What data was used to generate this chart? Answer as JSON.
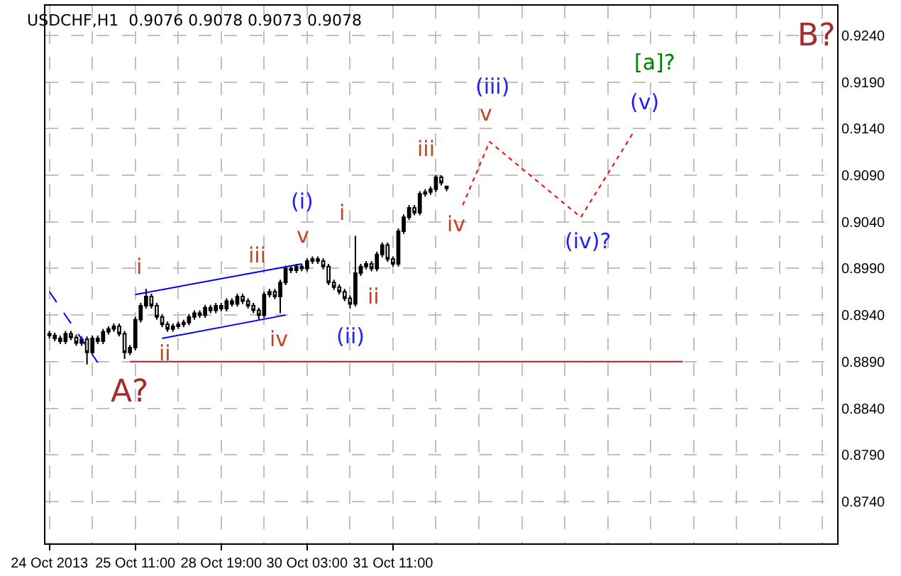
{
  "chart_data": {
    "type": "candlestick",
    "title": "USDCHF,H1  0.9076 0.9078 0.9073 0.9078",
    "categories": [
      "24 Oct 2013",
      null,
      null,
      null,
      null,
      null,
      null,
      null,
      null,
      null,
      null,
      null,
      null,
      null,
      null,
      null,
      "25 Oct 11:00",
      null,
      null,
      null,
      null,
      null,
      null,
      null,
      null,
      null,
      null,
      null,
      null,
      null,
      null,
      null,
      "28 Oct 19:00",
      null,
      null,
      null,
      null,
      null,
      null,
      null,
      null,
      null,
      null,
      null,
      null,
      null,
      null,
      null,
      "30 Oct 03:00",
      null,
      null,
      null,
      null,
      null,
      null,
      null,
      null,
      null,
      null,
      null,
      null,
      null,
      null,
      null,
      "31 Oct 11:00",
      null,
      null,
      null,
      null,
      null,
      null,
      null,
      null,
      null,
      null,
      null,
      null,
      null,
      null,
      null,
      null,
      null,
      null,
      null,
      null,
      null,
      null,
      null,
      null,
      null,
      null,
      null,
      null,
      null,
      null,
      null,
      null,
      null,
      null,
      null,
      null,
      null,
      null,
      null,
      null,
      null,
      null,
      null,
      null,
      null,
      null,
      null,
      null,
      null,
      null,
      null,
      null,
      null,
      null,
      null,
      null,
      null,
      null,
      null,
      null,
      null,
      null,
      null,
      null,
      null,
      null,
      null,
      null,
      null,
      null,
      null,
      null,
      null,
      null,
      null,
      null,
      null,
      null,
      null,
      null,
      null,
      null
    ],
    "color": "#000000",
    "ohlc": [
      [
        0.892,
        0.8923,
        0.8915,
        0.8918
      ],
      [
        0.8918,
        0.8921,
        0.8912,
        0.8915
      ],
      [
        0.8915,
        0.8918,
        0.8909,
        0.8912
      ],
      [
        0.8912,
        0.8923,
        0.8909,
        0.892
      ],
      [
        0.892,
        0.8923,
        0.8913,
        0.8916
      ],
      [
        0.8916,
        0.8919,
        0.8907,
        0.891
      ],
      [
        0.891,
        0.8917,
        0.8907,
        0.8914
      ],
      [
        0.8914,
        0.8917,
        0.8887,
        0.89
      ],
      [
        0.89,
        0.8918,
        0.8897,
        0.8915
      ],
      [
        0.8915,
        0.8918,
        0.8909,
        0.8912
      ],
      [
        0.8912,
        0.8925,
        0.8909,
        0.8922
      ],
      [
        0.8922,
        0.8928,
        0.8919,
        0.8925
      ],
      [
        0.8925,
        0.8931,
        0.8922,
        0.8928
      ],
      [
        0.8928,
        0.8931,
        0.8917,
        0.892
      ],
      [
        0.892,
        0.8923,
        0.8893,
        0.89
      ],
      [
        0.89,
        0.8908,
        0.8897,
        0.8905
      ],
      [
        0.8905,
        0.8938,
        0.8902,
        0.8935
      ],
      [
        0.8935,
        0.8953,
        0.8932,
        0.895
      ],
      [
        0.895,
        0.8968,
        0.8947,
        0.896
      ],
      [
        0.896,
        0.8963,
        0.8947,
        0.895
      ],
      [
        0.895,
        0.8953,
        0.8935,
        0.8938
      ],
      [
        0.8938,
        0.8941,
        0.8927,
        0.893
      ],
      [
        0.893,
        0.8933,
        0.8922,
        0.8925
      ],
      [
        0.8925,
        0.8931,
        0.8922,
        0.8928
      ],
      [
        0.8928,
        0.8933,
        0.8925,
        0.893
      ],
      [
        0.893,
        0.8935,
        0.8927,
        0.8932
      ],
      [
        0.8932,
        0.8941,
        0.8929,
        0.8938
      ],
      [
        0.8938,
        0.8945,
        0.8935,
        0.8942
      ],
      [
        0.8942,
        0.8945,
        0.8937,
        0.894
      ],
      [
        0.894,
        0.8951,
        0.8937,
        0.8948
      ],
      [
        0.8948,
        0.8951,
        0.8942,
        0.8945
      ],
      [
        0.8945,
        0.8953,
        0.8942,
        0.895
      ],
      [
        0.895,
        0.8953,
        0.8944,
        0.8947
      ],
      [
        0.8947,
        0.8958,
        0.8944,
        0.8955
      ],
      [
        0.8955,
        0.8958,
        0.8949,
        0.8952
      ],
      [
        0.8952,
        0.8963,
        0.8949,
        0.896
      ],
      [
        0.896,
        0.8963,
        0.8952,
        0.8955
      ],
      [
        0.8955,
        0.8958,
        0.8947,
        0.895
      ],
      [
        0.895,
        0.8953,
        0.8942,
        0.8945
      ],
      [
        0.8945,
        0.8948,
        0.8935,
        0.894
      ],
      [
        0.894,
        0.8965,
        0.8937,
        0.8962
      ],
      [
        0.8962,
        0.8968,
        0.8959,
        0.8965
      ],
      [
        0.8965,
        0.8968,
        0.8957,
        0.896
      ],
      [
        0.896,
        0.8978,
        0.8942,
        0.8975
      ],
      [
        0.8975,
        0.8993,
        0.8972,
        0.899
      ],
      [
        0.899,
        0.8993,
        0.8985,
        0.8988
      ],
      [
        0.8988,
        0.8995,
        0.8985,
        0.8992
      ],
      [
        0.8992,
        0.8995,
        0.8987,
        0.899
      ],
      [
        0.899,
        0.9001,
        0.8987,
        0.8998
      ],
      [
        0.8998,
        0.9003,
        0.8995,
        0.9
      ],
      [
        0.9,
        0.9003,
        0.8995,
        0.8998
      ],
      [
        0.8998,
        0.9001,
        0.8989,
        0.8992
      ],
      [
        0.8992,
        0.8995,
        0.8972,
        0.8975
      ],
      [
        0.8975,
        0.8978,
        0.8967,
        0.897
      ],
      [
        0.897,
        0.8973,
        0.8962,
        0.8965
      ],
      [
        0.8965,
        0.8968,
        0.8955,
        0.8958
      ],
      [
        0.8958,
        0.8961,
        0.8947,
        0.8952
      ],
      [
        0.8952,
        0.9025,
        0.8949,
        0.8985
      ],
      [
        0.8985,
        0.8995,
        0.8982,
        0.8992
      ],
      [
        0.8992,
        0.8998,
        0.8989,
        0.8995
      ],
      [
        0.8995,
        0.8998,
        0.8987,
        0.899
      ],
      [
        0.899,
        0.9008,
        0.8987,
        0.9005
      ],
      [
        0.9005,
        0.9018,
        0.9002,
        0.9015
      ],
      [
        0.9015,
        0.9018,
        0.8997,
        0.9
      ],
      [
        0.9,
        0.9003,
        0.8992,
        0.8995
      ],
      [
        0.8995,
        0.9033,
        0.8992,
        0.903
      ],
      [
        0.903,
        0.9048,
        0.9027,
        0.9045
      ],
      [
        0.9045,
        0.9058,
        0.9042,
        0.9055
      ],
      [
        0.9055,
        0.9058,
        0.9047,
        0.905
      ],
      [
        0.905,
        0.9073,
        0.9047,
        0.907
      ],
      [
        0.907,
        0.9075,
        0.9067,
        0.9072
      ],
      [
        0.9072,
        0.9078,
        0.9069,
        0.9075
      ],
      [
        0.9075,
        0.909,
        0.9072,
        0.9088
      ],
      [
        0.9088,
        0.909,
        0.9079,
        0.9082
      ],
      [
        0.9076,
        0.9078,
        0.9073,
        0.9078
      ],
      null,
      null,
      null,
      null,
      null,
      null,
      null,
      null,
      null,
      null,
      null,
      null,
      null,
      null,
      null,
      null,
      null,
      null,
      null,
      null,
      null,
      null,
      null,
      null,
      null,
      null,
      null,
      null,
      null,
      null,
      null,
      null,
      null,
      null,
      null,
      null,
      null,
      null,
      null,
      null,
      null,
      null,
      null,
      null,
      null,
      null,
      null,
      null,
      null,
      null,
      null,
      null,
      null,
      null,
      null,
      null,
      null,
      null,
      null,
      null,
      null,
      null,
      null,
      null,
      null,
      null,
      null,
      null,
      null,
      null,
      null,
      null
    ],
    "series": [
      {
        "type": "line",
        "color": "#0000ff",
        "line_style": "dashed",
        "values": [
          0.8965,
          null,
          null,
          null,
          null,
          null,
          null,
          null,
          null,
          0.8889,
          null,
          null,
          null,
          null,
          null,
          null,
          null,
          null,
          null,
          null,
          null,
          null,
          null,
          null,
          null,
          null,
          null,
          null,
          null,
          null,
          null,
          null,
          null,
          null,
          null,
          null,
          null,
          null,
          null,
          null,
          null,
          null,
          null,
          null,
          null,
          null,
          null,
          null,
          null,
          null,
          null,
          null,
          null,
          null,
          null,
          null,
          null,
          null,
          null,
          null,
          null,
          null,
          null,
          null,
          null,
          null,
          null,
          null,
          null,
          null,
          null,
          null,
          null,
          null,
          null,
          null,
          null,
          null,
          null,
          null,
          null,
          null,
          null,
          null,
          null,
          null,
          null,
          null,
          null,
          null,
          null,
          null,
          null,
          null,
          null,
          null,
          null,
          null,
          null,
          null,
          null,
          null,
          null,
          null,
          null,
          null,
          null,
          null,
          null,
          null,
          null,
          null,
          null,
          null,
          null,
          null,
          null,
          null,
          null,
          null,
          null,
          null,
          null,
          null,
          null,
          null,
          null,
          null,
          null,
          null,
          null,
          null,
          null,
          null,
          null,
          null,
          null,
          null,
          null,
          null,
          null,
          null,
          null,
          null,
          null,
          null,
          null
        ]
      },
      {
        "type": "line",
        "color": "#0000ff",
        "line_style": "solid",
        "values": [
          null,
          null,
          null,
          null,
          null,
          null,
          null,
          null,
          null,
          null,
          null,
          null,
          null,
          null,
          null,
          null,
          0.8962,
          null,
          null,
          null,
          null,
          null,
          null,
          null,
          null,
          null,
          null,
          null,
          null,
          null,
          null,
          null,
          null,
          null,
          null,
          null,
          null,
          null,
          null,
          null,
          null,
          null,
          null,
          null,
          null,
          null,
          null,
          0.8995,
          null,
          null,
          null,
          null,
          null,
          null,
          null,
          null,
          null,
          null,
          null,
          null,
          null,
          null,
          null,
          null,
          null,
          null,
          null,
          null,
          null,
          null,
          null,
          null,
          null,
          null,
          null,
          null,
          null,
          null,
          null,
          null,
          null,
          null,
          null,
          null,
          null,
          null,
          null,
          null,
          null,
          null,
          null,
          null,
          null,
          null,
          null,
          null,
          null,
          null,
          null,
          null,
          null,
          null,
          null,
          null,
          null,
          null,
          null,
          null,
          null,
          null,
          null,
          null,
          null,
          null,
          null,
          null,
          null,
          null,
          null,
          null,
          null,
          null,
          null,
          null,
          null,
          null,
          null,
          null,
          null,
          null,
          null,
          null,
          null,
          null,
          null,
          null,
          null,
          null,
          null,
          null,
          null,
          null,
          null,
          null,
          null,
          null,
          null
        ]
      },
      {
        "type": "line",
        "color": "#0000ff",
        "line_style": "solid",
        "values": [
          null,
          null,
          null,
          null,
          null,
          null,
          null,
          null,
          null,
          null,
          null,
          null,
          null,
          null,
          null,
          null,
          null,
          null,
          null,
          null,
          null,
          0.8915,
          null,
          null,
          null,
          null,
          null,
          null,
          null,
          null,
          null,
          null,
          null,
          null,
          null,
          null,
          null,
          null,
          null,
          null,
          null,
          null,
          null,
          null,
          0.894,
          null,
          null,
          null,
          null,
          null,
          null,
          null,
          null,
          null,
          null,
          null,
          null,
          null,
          null,
          null,
          null,
          null,
          null,
          null,
          null,
          null,
          null,
          null,
          null,
          null,
          null,
          null,
          null,
          null,
          null,
          null,
          null,
          null,
          null,
          null,
          null,
          null,
          null,
          null,
          null,
          null,
          null,
          null,
          null,
          null,
          null,
          null,
          null,
          null,
          null,
          null,
          null,
          null,
          null,
          null,
          null,
          null,
          null,
          null,
          null,
          null,
          null,
          null,
          null,
          null,
          null,
          null,
          null,
          null,
          null,
          null,
          null,
          null,
          null,
          null,
          null,
          null,
          null,
          null,
          null,
          null,
          null,
          null,
          null,
          null,
          null,
          null,
          null,
          null,
          null,
          null,
          null,
          null,
          null,
          null,
          null,
          null,
          null,
          null,
          null,
          null,
          null
        ]
      },
      {
        "type": "line",
        "color": "#b22222",
        "line_style": "solid",
        "values": [
          null,
          null,
          null,
          null,
          null,
          null,
          null,
          null,
          null,
          null,
          null,
          null,
          null,
          null,
          null,
          0.889,
          null,
          null,
          null,
          null,
          null,
          null,
          null,
          null,
          null,
          null,
          null,
          null,
          null,
          null,
          null,
          null,
          null,
          null,
          null,
          null,
          null,
          null,
          null,
          null,
          null,
          null,
          null,
          null,
          null,
          null,
          null,
          null,
          null,
          null,
          null,
          null,
          null,
          null,
          null,
          null,
          null,
          null,
          null,
          null,
          null,
          null,
          null,
          null,
          null,
          null,
          null,
          null,
          null,
          null,
          null,
          null,
          null,
          null,
          null,
          null,
          null,
          null,
          null,
          null,
          null,
          null,
          null,
          null,
          null,
          null,
          null,
          null,
          null,
          null,
          null,
          null,
          null,
          null,
          null,
          null,
          null,
          null,
          null,
          null,
          null,
          null,
          null,
          null,
          null,
          null,
          null,
          null,
          null,
          null,
          null,
          null,
          null,
          null,
          null,
          null,
          null,
          null,
          0.889,
          null,
          null,
          null,
          null,
          null,
          null,
          null,
          null,
          null,
          null,
          null,
          null,
          null,
          null,
          null,
          null,
          null,
          null,
          null,
          null,
          null,
          null,
          null,
          null,
          null,
          null,
          null,
          null
        ]
      },
      {
        "type": "line",
        "color": "#ff0000",
        "line_style": "dotted",
        "values": [
          null,
          null,
          null,
          null,
          null,
          null,
          null,
          null,
          null,
          null,
          null,
          null,
          null,
          null,
          null,
          null,
          null,
          null,
          null,
          null,
          null,
          null,
          null,
          null,
          null,
          null,
          null,
          null,
          null,
          null,
          null,
          null,
          null,
          null,
          null,
          null,
          null,
          null,
          null,
          null,
          null,
          null,
          null,
          null,
          null,
          null,
          null,
          null,
          null,
          null,
          null,
          null,
          null,
          null,
          null,
          null,
          null,
          null,
          null,
          null,
          null,
          null,
          null,
          null,
          null,
          null,
          null,
          null,
          null,
          null,
          null,
          null,
          null,
          null,
          null,
          null,
          null,
          0.9058,
          null,
          null,
          null,
          null,
          0.9126,
          null,
          null,
          null,
          null,
          null,
          null,
          null,
          null,
          null,
          null,
          null,
          null,
          null,
          null,
          null,
          null,
          0.9045,
          null,
          null,
          null,
          null,
          null,
          null,
          null,
          null,
          null,
          0.9138,
          null,
          null,
          null,
          null,
          null,
          null,
          null,
          null,
          null,
          null,
          null,
          null,
          null,
          null,
          null,
          null,
          null,
          null,
          null,
          null,
          null,
          null,
          null,
          null,
          null,
          null,
          null,
          null,
          null,
          null,
          null,
          null,
          null,
          null,
          null,
          null,
          null
        ]
      }
    ],
    "ylim": [
      0.8695,
      0.9272
    ],
    "yticks": [
      {
        "value": 0.874,
        "label": "0.8740"
      },
      {
        "value": 0.879,
        "label": "0.8790"
      },
      {
        "value": 0.884,
        "label": "0.8840"
      },
      {
        "value": 0.889,
        "label": "0.8890"
      },
      {
        "value": 0.894,
        "label": "0.8940"
      },
      {
        "value": 0.899,
        "label": "0.8990"
      },
      {
        "value": 0.904,
        "label": "0.9040"
      },
      {
        "value": 0.909,
        "label": "0.9090"
      },
      {
        "value": 0.914,
        "label": "0.9140"
      },
      {
        "value": 0.919,
        "label": "0.9190"
      },
      {
        "value": 0.924,
        "label": "0.9240"
      }
    ],
    "grid": true,
    "annotations": [
      "i",
      "ii",
      "iii",
      "iv",
      "v",
      "(i)",
      "i",
      "ii",
      "(ii)",
      "iii",
      "iv",
      "(iii)",
      "v",
      "(iv)?",
      "(v)",
      "[a]?",
      "A?",
      "B?"
    ]
  }
}
